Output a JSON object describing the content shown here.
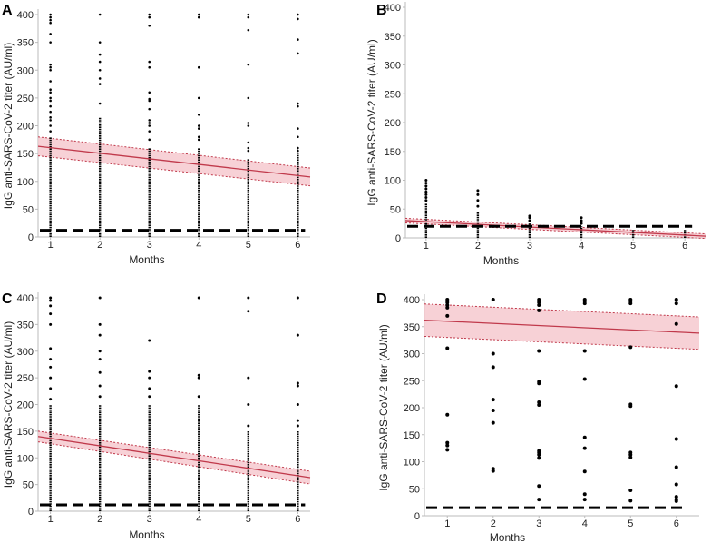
{
  "chart_data": [
    {
      "type": "scatter",
      "panel_label": "A",
      "xlabel": "Months",
      "ylabel": "IgG anti-SARS-CoV-2 titer (AU/ml)",
      "xticks": [
        "1",
        "2",
        "3",
        "4",
        "5",
        "6"
      ],
      "yticks": [
        "0",
        "50",
        "100",
        "150",
        "200",
        "250",
        "300",
        "350",
        "400"
      ],
      "xlim": [
        0.75,
        6.25
      ],
      "ylim": [
        0,
        400
      ],
      "threshold": 12,
      "regression": {
        "x": [
          0.75,
          6.25
        ],
        "y": [
          163,
          108
        ],
        "ci_halfwidth": [
          17,
          16
        ]
      },
      "columns": [
        {
          "month": 1,
          "dense": [
            0,
            180
          ],
          "outliers": [
            190,
            200,
            210,
            215,
            225,
            235,
            245,
            250,
            260,
            265,
            280,
            300,
            305,
            310,
            350,
            365,
            385,
            390,
            395,
            400
          ]
        },
        {
          "month": 2,
          "dense": [
            0,
            215
          ],
          "outliers": [
            240,
            275,
            285,
            300,
            315,
            328,
            350,
            400
          ]
        },
        {
          "month": 3,
          "dense": [
            0,
            160
          ],
          "outliers": [
            175,
            190,
            200,
            205,
            210,
            230,
            245,
            248,
            260,
            305,
            315,
            380,
            395,
            400
          ]
        },
        {
          "month": 4,
          "dense": [
            0,
            160
          ],
          "outliers": [
            175,
            180,
            195,
            200,
            220,
            250,
            305,
            395,
            400
          ]
        },
        {
          "month": 5,
          "dense": [
            0,
            140
          ],
          "outliers": [
            155,
            160,
            170,
            200,
            205,
            250,
            310,
            372,
            395,
            400
          ]
        },
        {
          "month": 6,
          "dense": [
            0,
            150
          ],
          "outliers": [
            155,
            160,
            180,
            195,
            235,
            240,
            330,
            355,
            392,
            400
          ]
        }
      ]
    },
    {
      "type": "scatter",
      "panel_label": "B",
      "xlabel": "Months",
      "ylabel": "IgG anti-SARS-CoV-2 titer (AU/ml)",
      "xticks": [
        "1",
        "2",
        "3",
        "4",
        "5",
        "6"
      ],
      "yticks": [
        "0",
        "50",
        "100",
        "150",
        "200",
        "250",
        "300",
        "350",
        "400"
      ],
      "xlim": [
        0.6,
        6.4
      ],
      "ylim": [
        0,
        400
      ],
      "threshold": 20,
      "regression": {
        "x": [
          0.6,
          6.4
        ],
        "y": [
          30,
          3
        ],
        "ci_halfwidth": [
          4,
          4
        ]
      },
      "columns": [
        {
          "month": 1,
          "dense": [
            0,
            60
          ],
          "outliers": [
            65,
            70,
            75,
            80,
            85,
            90,
            95,
            100
          ]
        },
        {
          "month": 2,
          "dense": [
            0,
            45
          ],
          "outliers": [
            55,
            65,
            75,
            82
          ]
        },
        {
          "month": 3,
          "dense": [
            0,
            25
          ],
          "outliers": [
            30,
            35,
            38
          ]
        },
        {
          "month": 4,
          "dense": [
            0,
            20
          ],
          "outliers": [
            25,
            30,
            35
          ]
        },
        {
          "month": 5,
          "dense": [
            0,
            15
          ],
          "outliers": []
        },
        {
          "month": 6,
          "dense": [
            0,
            15
          ],
          "outliers": []
        }
      ]
    },
    {
      "type": "scatter",
      "panel_label": "C",
      "xlabel": "Months",
      "ylabel": "IgG anti-SARS-CoV-2 titer (AU/ml)",
      "xticks": [
        "1",
        "2",
        "3",
        "4",
        "5",
        "6"
      ],
      "yticks": [
        "0",
        "50",
        "100",
        "150",
        "200",
        "250",
        "300",
        "350",
        "400"
      ],
      "xlim": [
        0.75,
        6.25
      ],
      "ylim": [
        0,
        400
      ],
      "threshold": 12,
      "regression": {
        "x": [
          0.75,
          6.25
        ],
        "y": [
          140,
          63
        ],
        "ci_halfwidth": [
          10,
          12
        ]
      },
      "columns": [
        {
          "month": 1,
          "dense": [
            0,
            200
          ],
          "outliers": [
            210,
            230,
            250,
            270,
            285,
            305,
            350,
            370,
            385,
            395,
            400
          ]
        },
        {
          "month": 2,
          "dense": [
            0,
            200
          ],
          "outliers": [
            215,
            235,
            260,
            285,
            300,
            330,
            350,
            400
          ]
        },
        {
          "month": 3,
          "dense": [
            0,
            200
          ],
          "outliers": [
            215,
            230,
            250,
            262,
            320
          ]
        },
        {
          "month": 4,
          "dense": [
            0,
            200
          ],
          "outliers": [
            215,
            250,
            255,
            400
          ]
        },
        {
          "month": 5,
          "dense": [
            0,
            150
          ],
          "outliers": [
            160,
            200,
            250,
            375,
            400
          ]
        },
        {
          "month": 6,
          "dense": [
            0,
            150
          ],
          "outliers": [
            160,
            170,
            200,
            235,
            240,
            330,
            400
          ]
        }
      ]
    },
    {
      "type": "scatter",
      "panel_label": "D",
      "xlabel": "Months",
      "ylabel": "IgG anti-SARS-CoV-2 titer (AU/ml)",
      "xticks": [
        "1",
        "2",
        "3",
        "4",
        "5",
        "6"
      ],
      "yticks": [
        "0",
        "50",
        "100",
        "150",
        "200",
        "250",
        "300",
        "350",
        "400"
      ],
      "xlim": [
        0.5,
        6.5
      ],
      "ylim": [
        0,
        400
      ],
      "threshold": 15,
      "regression": {
        "x": [
          0.5,
          6.5
        ],
        "y": [
          362,
          338
        ],
        "ci_halfwidth": [
          30,
          30
        ]
      },
      "columns": [
        {
          "month": 1,
          "dense": null,
          "outliers": [
            400,
            395,
            390,
            385,
            370,
            310,
            187,
            135,
            130,
            122
          ]
        },
        {
          "month": 2,
          "dense": null,
          "outliers": [
            400,
            300,
            275,
            215,
            195,
            172,
            87,
            83
          ]
        },
        {
          "month": 3,
          "dense": null,
          "outliers": [
            400,
            395,
            390,
            380,
            305,
            248,
            245,
            210,
            205,
            120,
            117,
            113,
            107,
            55,
            30
          ]
        },
        {
          "month": 4,
          "dense": null,
          "outliers": [
            400,
            397,
            393,
            305,
            253,
            145,
            125,
            82,
            40,
            30
          ]
        },
        {
          "month": 5,
          "dense": null,
          "outliers": [
            400,
            397,
            393,
            312,
            206,
            203,
            117,
            113,
            108,
            47,
            28
          ]
        },
        {
          "month": 6,
          "dense": null,
          "outliers": [
            400,
            393,
            355,
            240,
            142,
            90,
            58,
            35,
            30,
            27
          ]
        }
      ]
    }
  ],
  "colors": {
    "points": "#000000",
    "regression": "#c0394b",
    "band": "#f5c6cc",
    "threshold": "#000000",
    "axis": "#bbbbbb"
  }
}
